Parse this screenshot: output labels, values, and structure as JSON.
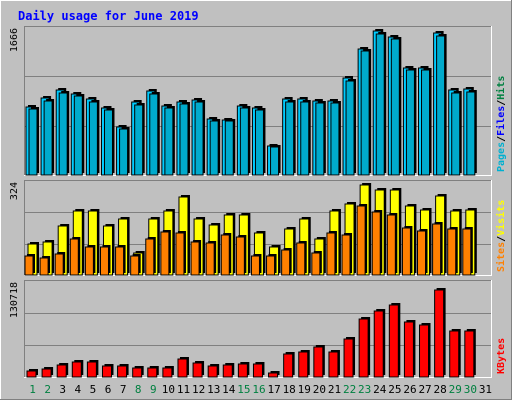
{
  "colors": {
    "background": "#c0c0c0",
    "plot_bg": "#c0c0c0",
    "title": "#0000ff",
    "axis_text": "#000000",
    "weekend_text": "#008040",
    "hits": "#00ccff",
    "hits_dark": "#008899",
    "files": "#00aacc",
    "pages_label": "#00b0d0",
    "files_label": "#0000ff",
    "hits_label": "#008040",
    "sites": "#ff8000",
    "visits": "#ffff00",
    "kbytes": "#ff0000"
  },
  "chart_data": {
    "type": "bar",
    "title": "Daily usage for June 2019",
    "categories": [
      "1",
      "2",
      "3",
      "4",
      "5",
      "6",
      "7",
      "8",
      "9",
      "10",
      "11",
      "12",
      "13",
      "14",
      "15",
      "16",
      "17",
      "18",
      "19",
      "20",
      "21",
      "22",
      "23",
      "24",
      "25",
      "26",
      "27",
      "28",
      "29",
      "30",
      "31"
    ],
    "weekend_days": [
      "1",
      "2",
      "8",
      "9",
      "15",
      "16",
      "22",
      "23",
      "29",
      "30"
    ],
    "panels": [
      {
        "id": "hits_files_pages",
        "max_label": "1666",
        "ymax": 1666,
        "legend": [
          {
            "label": "Pages",
            "color_key": "pages_label"
          },
          {
            "label": "Files",
            "color_key": "files_label"
          },
          {
            "label": "Hits",
            "color_key": "hits_label"
          }
        ],
        "series": [
          {
            "name": "Hits",
            "values": [
              790,
              890,
              980,
              940,
              880,
              780,
              560,
              840,
              970,
              800,
              850,
              870,
              650,
              640,
              800,
              780,
              340,
              880,
              880,
              860,
              860,
              1120,
              1460,
              1666,
              1600,
              1240,
              1240,
              1640,
              980,
              990,
              0
            ]
          },
          {
            "name": "Files",
            "values": [
              760,
              860,
              950,
              910,
              850,
              750,
              530,
              810,
              940,
              770,
              820,
              840,
              620,
              620,
              770,
              750,
              320,
              850,
              850,
              830,
              830,
              1090,
              1430,
              1630,
              1570,
              1210,
              1210,
              1610,
              950,
              960,
              0
            ]
          }
        ]
      },
      {
        "id": "visits_sites",
        "max_label": "324",
        "ymax": 324,
        "legend": [
          {
            "label": "Sites",
            "color_key": "sites"
          },
          {
            "label": "Visits",
            "color_key": "visits"
          }
        ],
        "series": [
          {
            "name": "Visits",
            "values": [
              110,
              120,
              175,
              230,
              230,
              175,
              200,
              80,
              200,
              230,
              280,
              200,
              180,
              215,
              215,
              150,
              100,
              165,
              200,
              130,
              230,
              255,
              324,
              305,
              305,
              250,
              235,
              285,
              230,
              235,
              0
            ]
          },
          {
            "name": "Sites",
            "values": [
              70,
              60,
              75,
              130,
              100,
              100,
              100,
              70,
              130,
              155,
              150,
              120,
              115,
              145,
              135,
              70,
              70,
              90,
              115,
              80,
              150,
              145,
              250,
              225,
              215,
              170,
              160,
              185,
              165,
              165,
              0
            ]
          }
        ]
      },
      {
        "id": "kbytes",
        "max_label": "130718",
        "ymax": 130718,
        "legend": [
          {
            "label": "KBytes",
            "color_key": "kbytes"
          }
        ],
        "series": [
          {
            "name": "KBytes",
            "values": [
              8500,
              12000,
              17000,
              21000,
              21000,
              16000,
              16000,
              13000,
              12500,
              13000,
              25000,
              20000,
              16000,
              17000,
              19000,
              19000,
              5500,
              32000,
              36000,
              42000,
              36000,
              54000,
              83000,
              94000,
              103000,
              78000,
              74000,
              124000,
              66000,
              66000,
              0
            ]
          }
        ]
      }
    ]
  }
}
